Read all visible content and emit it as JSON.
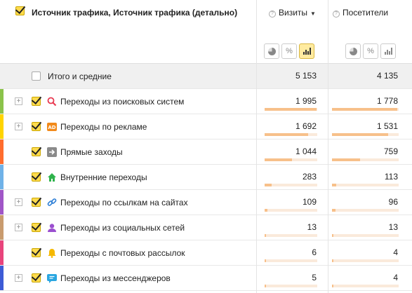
{
  "header": {
    "dimension_title": "Источник трафика, Источник трафика (детально)",
    "metrics": [
      {
        "label": "Визиты",
        "sort": "▼"
      },
      {
        "label": "Посетители"
      }
    ]
  },
  "total": {
    "label": "Итого и средние",
    "visits": "5 153",
    "visitors": "4 135"
  },
  "rows": [
    {
      "label": "Переходы из поисковых систем",
      "visits": "1 995",
      "visitors": "1 778",
      "visits_share": 0.387,
      "visitors_share": 0.43,
      "color": "#8bc34a",
      "icon": "search-icon",
      "expandable": true
    },
    {
      "label": "Переходы по рекламе",
      "visits": "1 692",
      "visitors": "1 531",
      "visits_share": 0.328,
      "visitors_share": 0.37,
      "color": "#ffd400",
      "icon": "ad-icon",
      "expandable": true
    },
    {
      "label": "Прямые заходы",
      "visits": "1 044",
      "visitors": "759",
      "visits_share": 0.203,
      "visitors_share": 0.184,
      "color": "#ff6d2e",
      "icon": "arrow-right-icon",
      "expandable": false
    },
    {
      "label": "Внутренние переходы",
      "visits": "283",
      "visitors": "113",
      "visits_share": 0.055,
      "visitors_share": 0.027,
      "color": "#6fb2e8",
      "icon": "home-icon",
      "expandable": false
    },
    {
      "label": "Переходы по ссылкам на сайтах",
      "visits": "109",
      "visitors": "96",
      "visits_share": 0.021,
      "visitors_share": 0.023,
      "color": "#a056c7",
      "icon": "link-icon",
      "expandable": true
    },
    {
      "label": "Переходы из социальных сетей",
      "visits": "13",
      "visitors": "13",
      "visits_share": 0.003,
      "visitors_share": 0.003,
      "color": "#c99b6e",
      "icon": "user-icon",
      "expandable": true
    },
    {
      "label": "Переходы с почтовых рассылок",
      "visits": "6",
      "visitors": "4",
      "visits_share": 0.001,
      "visitors_share": 0.001,
      "color": "#e8447c",
      "icon": "bell-icon",
      "expandable": false
    },
    {
      "label": "Переходы из мессенджеров",
      "visits": "5",
      "visitors": "4",
      "visits_share": 0.001,
      "visitors_share": 0.001,
      "color": "#3d5bd6",
      "icon": "chat-icon",
      "expandable": true
    }
  ],
  "view_buttons": [
    "pie-chart-icon",
    "percent-icon",
    "bar-chart-icon"
  ],
  "view_percent_label": "%",
  "colors": {
    "accent": "#ffdb4d",
    "bar_fill": "#f7c08a",
    "bar_track": "#faeadb"
  }
}
